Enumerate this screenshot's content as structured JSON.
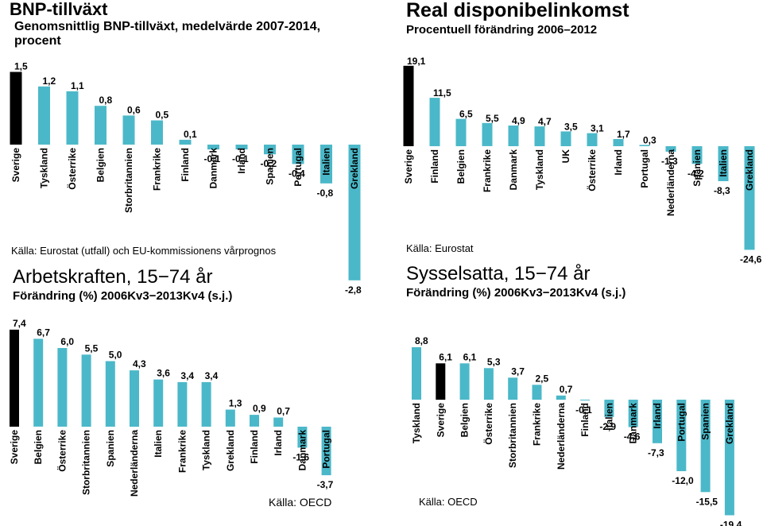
{
  "colors": {
    "highlight": "#000000",
    "bar": "#4bb8c9"
  },
  "chart_data": [
    {
      "type": "bar",
      "title": "BNP-tillväxt",
      "subtitle": "Genomsnittlig BNP-tillväxt, medelvärde 2007-2014, procent",
      "source": "Källa: Eurostat (utfall) och EU-kommissionens vårprognos",
      "highlight_index": 0,
      "categories": [
        "Sverige",
        "Tyskland",
        "Österrike",
        "Belgien",
        "Storbritannien",
        "Frankrike",
        "Finland",
        "Danmark",
        "Irland",
        "Spanien",
        "Portugal",
        "Italien",
        "Grekland"
      ],
      "values": [
        1.5,
        1.2,
        1.1,
        0.8,
        0.6,
        0.5,
        0.1,
        -0.1,
        -0.1,
        -0.2,
        -0.4,
        -0.8,
        -2.8
      ],
      "labels": [
        "1,5",
        "1,2",
        "1,1",
        "0,8",
        "0,6",
        "0,5",
        "0,1",
        "-0,1",
        "-0,1",
        "-0,2",
        "-0,4",
        "-0,8",
        "-2,8"
      ]
    },
    {
      "type": "bar",
      "title": "Real disponibelinkomst",
      "subtitle": "Procentuell förändring 2006–2012",
      "source": "Källa: Eurostat",
      "highlight_index": 0,
      "categories": [
        "Sverige",
        "Finland",
        "Belgien",
        "Frankrike",
        "Danmark",
        "Tyskland",
        "UK",
        "Österrike",
        "Irland",
        "Portugal",
        "Nederländerna",
        "Spanien",
        "Italien",
        "Grekland"
      ],
      "values": [
        19.1,
        11.5,
        6.5,
        5.5,
        4.9,
        4.7,
        3.5,
        3.1,
        1.7,
        0.3,
        -1.3,
        -4.2,
        -8.3,
        -24.6
      ],
      "labels": [
        "19,1",
        "11,5",
        "6,5",
        "5,5",
        "4,9",
        "4,7",
        "3,5",
        "3,1",
        "1,7",
        "0,3",
        "-1,3",
        "-4,2",
        "-8,3",
        "-24,6"
      ]
    },
    {
      "type": "bar",
      "title": "Arbetskraften, 15−74 år",
      "subtitle": "Förändring (%) 2006Kv3−2013Kv4 (s.j.)",
      "source": "Källa: OECD",
      "highlight_index": 0,
      "categories": [
        "Sverige",
        "Belgien",
        "Österrike",
        "Storbritannien",
        "Spanien",
        "Nederländerna",
        "Italien",
        "Frankrike",
        "Tyskland",
        "Grekland",
        "Finland",
        "Irland",
        "Danmark",
        "Portugal"
      ],
      "values": [
        7.4,
        6.7,
        6.0,
        5.5,
        5.0,
        4.3,
        3.6,
        3.4,
        3.4,
        1.3,
        0.9,
        0.7,
        -1.6,
        -3.7
      ],
      "labels": [
        "7,4",
        "6,7",
        "6,0",
        "5,5",
        "5,0",
        "4,3",
        "3,6",
        "3,4",
        "3,4",
        "1,3",
        "0,9",
        "0,7",
        "-1,6",
        "-3,7"
      ]
    },
    {
      "type": "bar",
      "title": "Sysselsatta, 15−74 år",
      "subtitle": "Förändring (%) 2006Kv3−2013Kv4 (s.j.)",
      "source": "Källa: OECD",
      "highlight_index": 1,
      "categories": [
        "Tyskland",
        "Sverige",
        "Belgien",
        "Österrike",
        "Storbritannien",
        "Frankrike",
        "Nederländerna",
        "Finland",
        "Italien",
        "Danmark",
        "Irland",
        "Portugal",
        "Spanien",
        "Grekland"
      ],
      "values": [
        8.8,
        6.1,
        6.1,
        5.3,
        3.7,
        2.5,
        0.7,
        -0.1,
        -2.9,
        -4.6,
        -7.3,
        -12.0,
        -15.5,
        -19.4
      ],
      "labels": [
        "8,8",
        "6,1",
        "6,1",
        "5,3",
        "3,7",
        "2,5",
        "0,7",
        "-0,1",
        "-2,9",
        "-4,6",
        "-7,3",
        "-12,0",
        "-15,5",
        "-19,4"
      ]
    }
  ]
}
